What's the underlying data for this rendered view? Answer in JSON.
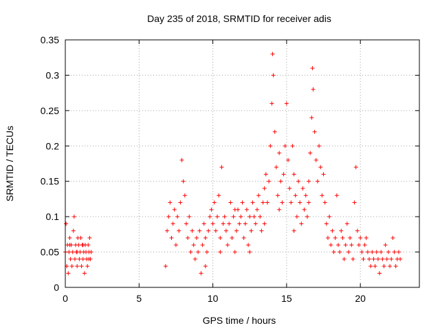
{
  "chart_data": {
    "type": "scatter",
    "title": "Day 235 of 2018, SRMTID for receiver adis",
    "xlabel": "GPS time / hours",
    "ylabel": "SRMTID / TECUs",
    "xlim": [
      0,
      24
    ],
    "ylim": [
      0,
      0.35
    ],
    "xticks": [
      0,
      5,
      10,
      15,
      20
    ],
    "xtick_labels": [
      "0",
      "5",
      "10",
      "15",
      "20"
    ],
    "yticks": [
      0,
      0.05,
      0.1,
      0.15,
      0.2,
      0.25,
      0.3,
      0.35
    ],
    "ytick_labels": [
      "0",
      "0.05",
      "0.1",
      "0.15",
      "0.2",
      "0.25",
      "0.3",
      "0.35"
    ],
    "grid": true,
    "marker": "+",
    "color": "#ff0000",
    "series": [
      {
        "name": "SRMTID",
        "points": [
          [
            0.0,
            0.05
          ],
          [
            0.05,
            0.09
          ],
          [
            0.1,
            0.03
          ],
          [
            0.15,
            0.06
          ],
          [
            0.2,
            0.02
          ],
          [
            0.25,
            0.05
          ],
          [
            0.3,
            0.07
          ],
          [
            0.35,
            0.04
          ],
          [
            0.4,
            0.06
          ],
          [
            0.45,
            0.03
          ],
          [
            0.5,
            0.05
          ],
          [
            0.55,
            0.08
          ],
          [
            0.6,
            0.1
          ],
          [
            0.65,
            0.04
          ],
          [
            0.7,
            0.06
          ],
          [
            0.75,
            0.05
          ],
          [
            0.8,
            0.03
          ],
          [
            0.85,
            0.07
          ],
          [
            0.9,
            0.06
          ],
          [
            0.95,
            0.04
          ],
          [
            1.0,
            0.05
          ],
          [
            1.05,
            0.07
          ],
          [
            1.1,
            0.03
          ],
          [
            1.15,
            0.06
          ],
          [
            1.2,
            0.04
          ],
          [
            1.25,
            0.05
          ],
          [
            1.3,
            0.02
          ],
          [
            1.35,
            0.06
          ],
          [
            1.4,
            0.05
          ],
          [
            1.45,
            0.04
          ],
          [
            1.5,
            0.03
          ],
          [
            1.55,
            0.06
          ],
          [
            1.6,
            0.05
          ],
          [
            1.65,
            0.07
          ],
          [
            1.7,
            0.04
          ],
          [
            1.75,
            0.05
          ],
          [
            0.3,
            0.06
          ],
          [
            0.8,
            0.05
          ],
          [
            1.2,
            0.06
          ],
          [
            1.6,
            0.04
          ],
          [
            6.8,
            0.03
          ],
          [
            6.9,
            0.08
          ],
          [
            7.0,
            0.1
          ],
          [
            7.1,
            0.12
          ],
          [
            7.2,
            0.07
          ],
          [
            7.3,
            0.09
          ],
          [
            7.4,
            0.11
          ],
          [
            7.5,
            0.06
          ],
          [
            7.6,
            0.1
          ],
          [
            7.7,
            0.08
          ],
          [
            7.8,
            0.12
          ],
          [
            7.9,
            0.18
          ],
          [
            8.0,
            0.15
          ],
          [
            8.1,
            0.13
          ],
          [
            8.2,
            0.09
          ],
          [
            8.3,
            0.07
          ],
          [
            8.4,
            0.1
          ],
          [
            8.5,
            0.05
          ],
          [
            8.6,
            0.08
          ],
          [
            8.7,
            0.06
          ],
          [
            8.8,
            0.04
          ],
          [
            8.9,
            0.07
          ],
          [
            9.0,
            0.05
          ],
          [
            9.1,
            0.08
          ],
          [
            9.2,
            0.02
          ],
          [
            9.3,
            0.06
          ],
          [
            9.4,
            0.09
          ],
          [
            9.5,
            0.07
          ],
          [
            9.6,
            0.05
          ],
          [
            9.7,
            0.08
          ],
          [
            9.8,
            0.1
          ],
          [
            9.9,
            0.11
          ],
          [
            10.0,
            0.09
          ],
          [
            10.1,
            0.12
          ],
          [
            10.2,
            0.08
          ],
          [
            10.3,
            0.1
          ],
          [
            10.4,
            0.13
          ],
          [
            10.5,
            0.07
          ],
          [
            10.6,
            0.17
          ],
          [
            10.7,
            0.09
          ],
          [
            10.8,
            0.1
          ],
          [
            10.9,
            0.08
          ],
          [
            11.0,
            0.06
          ],
          [
            11.1,
            0.09
          ],
          [
            11.2,
            0.12
          ],
          [
            11.3,
            0.07
          ],
          [
            11.4,
            0.1
          ],
          [
            11.5,
            0.05
          ],
          [
            11.6,
            0.08
          ],
          [
            11.7,
            0.11
          ],
          [
            11.8,
            0.09
          ],
          [
            11.9,
            0.1
          ],
          [
            12.0,
            0.12
          ],
          [
            12.1,
            0.07
          ],
          [
            12.2,
            0.09
          ],
          [
            12.3,
            0.11
          ],
          [
            12.4,
            0.06
          ],
          [
            12.5,
            0.1
          ],
          [
            12.6,
            0.08
          ],
          [
            12.7,
            0.12
          ],
          [
            12.8,
            0.1
          ],
          [
            12.9,
            0.09
          ],
          [
            13.0,
            0.11
          ],
          [
            13.1,
            0.13
          ],
          [
            13.2,
            0.1
          ],
          [
            13.3,
            0.08
          ],
          [
            13.4,
            0.12
          ],
          [
            13.5,
            0.14
          ],
          [
            13.6,
            0.16
          ],
          [
            13.7,
            0.12
          ],
          [
            13.8,
            0.15
          ],
          [
            13.9,
            0.2
          ],
          [
            14.0,
            0.26
          ],
          [
            14.05,
            0.33
          ],
          [
            14.1,
            0.3
          ],
          [
            14.2,
            0.22
          ],
          [
            14.3,
            0.17
          ],
          [
            14.4,
            0.13
          ],
          [
            14.5,
            0.19
          ],
          [
            14.6,
            0.15
          ],
          [
            14.7,
            0.12
          ],
          [
            14.8,
            0.16
          ],
          [
            14.9,
            0.2
          ],
          [
            15.0,
            0.26
          ],
          [
            15.1,
            0.18
          ],
          [
            15.2,
            0.14
          ],
          [
            15.3,
            0.12
          ],
          [
            15.4,
            0.2
          ],
          [
            15.5,
            0.16
          ],
          [
            15.6,
            0.13
          ],
          [
            15.7,
            0.1
          ],
          [
            15.8,
            0.15
          ],
          [
            15.9,
            0.12
          ],
          [
            16.0,
            0.09
          ],
          [
            16.1,
            0.14
          ],
          [
            16.2,
            0.11
          ],
          [
            16.3,
            0.13
          ],
          [
            16.4,
            0.1
          ],
          [
            16.5,
            0.15
          ],
          [
            16.6,
            0.19
          ],
          [
            16.7,
            0.24
          ],
          [
            16.75,
            0.31
          ],
          [
            16.8,
            0.28
          ],
          [
            16.9,
            0.22
          ],
          [
            17.0,
            0.18
          ],
          [
            17.1,
            0.15
          ],
          [
            17.2,
            0.2
          ],
          [
            17.3,
            0.17
          ],
          [
            17.4,
            0.13
          ],
          [
            17.5,
            0.16
          ],
          [
            17.6,
            0.12
          ],
          [
            17.7,
            0.09
          ],
          [
            17.8,
            0.07
          ],
          [
            17.9,
            0.1
          ],
          [
            18.0,
            0.06
          ],
          [
            18.1,
            0.08
          ],
          [
            18.2,
            0.05
          ],
          [
            18.3,
            0.07
          ],
          [
            18.4,
            0.13
          ],
          [
            18.5,
            0.06
          ],
          [
            18.6,
            0.05
          ],
          [
            18.7,
            0.08
          ],
          [
            18.8,
            0.07
          ],
          [
            18.9,
            0.04
          ],
          [
            19.0,
            0.06
          ],
          [
            19.1,
            0.09
          ],
          [
            19.2,
            0.05
          ],
          [
            19.3,
            0.07
          ],
          [
            19.4,
            0.06
          ],
          [
            19.5,
            0.04
          ],
          [
            19.6,
            0.12
          ],
          [
            19.7,
            0.17
          ],
          [
            19.8,
            0.08
          ],
          [
            19.9,
            0.06
          ],
          [
            20.0,
            0.07
          ],
          [
            20.1,
            0.05
          ],
          [
            20.2,
            0.04
          ],
          [
            20.3,
            0.06
          ],
          [
            20.4,
            0.07
          ],
          [
            20.5,
            0.05
          ],
          [
            20.6,
            0.04
          ],
          [
            20.7,
            0.03
          ],
          [
            20.8,
            0.05
          ],
          [
            20.9,
            0.04
          ],
          [
            21.0,
            0.03
          ],
          [
            21.1,
            0.05
          ],
          [
            21.2,
            0.04
          ],
          [
            21.3,
            0.02
          ],
          [
            21.4,
            0.05
          ],
          [
            21.5,
            0.04
          ],
          [
            21.6,
            0.03
          ],
          [
            21.7,
            0.06
          ],
          [
            21.8,
            0.04
          ],
          [
            21.9,
            0.05
          ],
          [
            22.0,
            0.03
          ],
          [
            22.1,
            0.04
          ],
          [
            22.2,
            0.07
          ],
          [
            22.3,
            0.05
          ],
          [
            22.4,
            0.03
          ],
          [
            22.5,
            0.04
          ],
          [
            22.6,
            0.05
          ],
          [
            22.7,
            0.04
          ],
          [
            9.5,
            0.03
          ],
          [
            10.5,
            0.05
          ],
          [
            11.5,
            0.11
          ],
          [
            12.5,
            0.05
          ],
          [
            13.5,
            0.09
          ],
          [
            14.5,
            0.11
          ],
          [
            15.5,
            0.08
          ],
          [
            16.5,
            0.12
          ]
        ]
      }
    ]
  }
}
